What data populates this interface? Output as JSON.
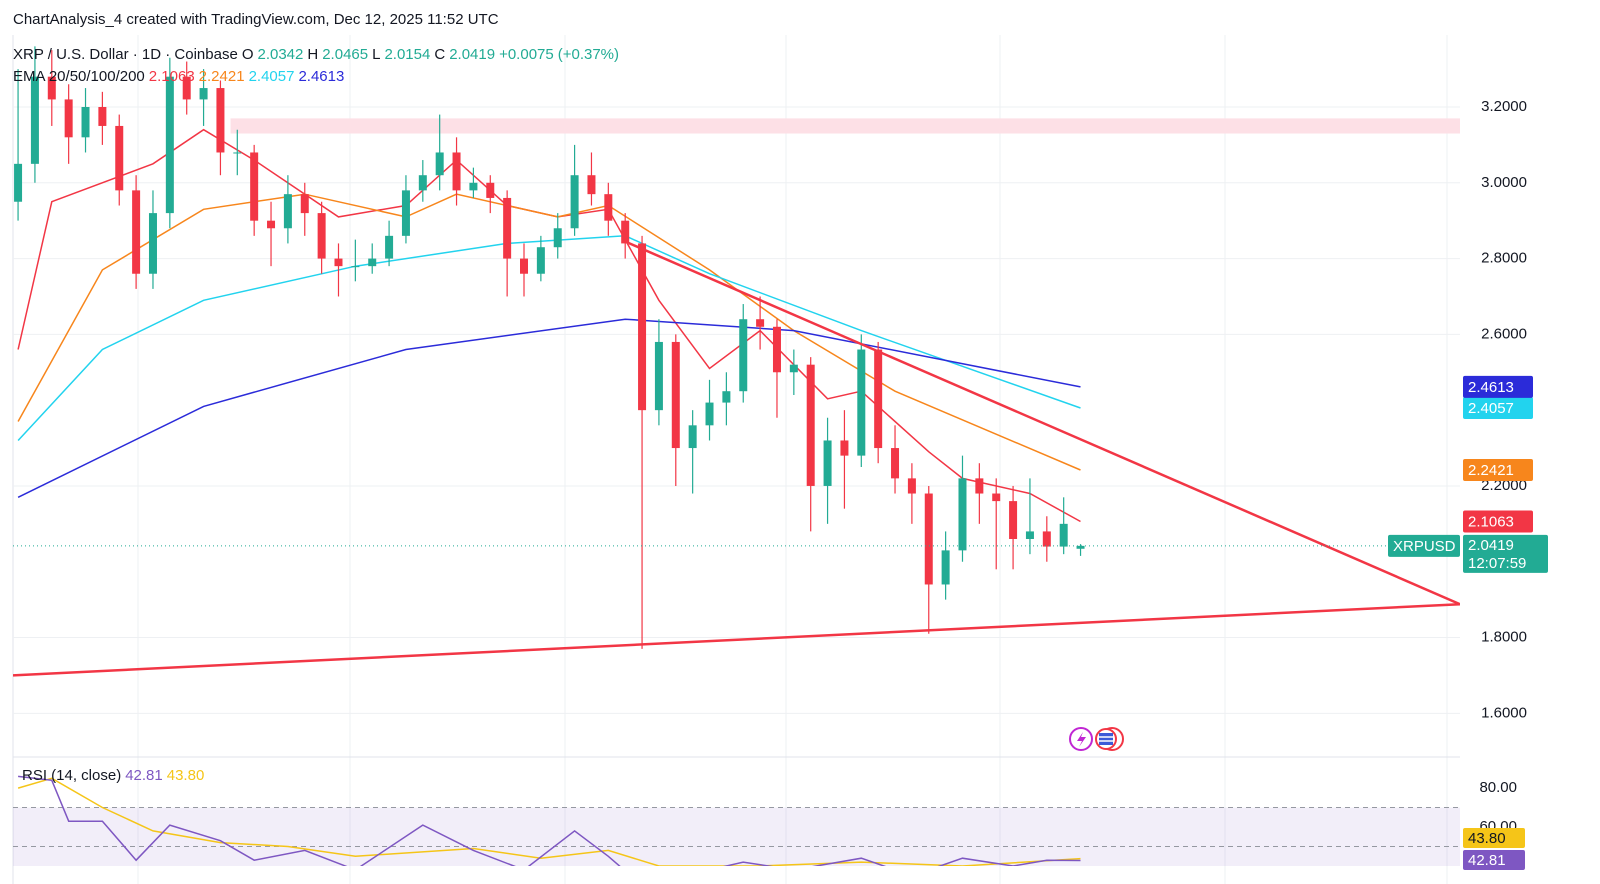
{
  "chart_data": {
    "type": "candlestick",
    "header": "ChartAnalysis_4 created with TradingView.com, Dec 12, 2025 11:52 UTC",
    "symbol_title": "XRP / U.S. Dollar · 1D · Coinbase",
    "ohlc_labels": [
      "O",
      "H",
      "L",
      "C"
    ],
    "change": {
      "value": 0.0075,
      "label": "+0.0075"
    },
    "change_pct": {
      "value": 0.37,
      "label": "(+0.37%)"
    },
    "ema_title": "EMA 20/50/100/200",
    "up_color": "#22ab94",
    "down_color": "#f23645",
    "ohlc": [
      [
        2.95,
        3.3,
        2.9,
        3.05
      ],
      [
        3.05,
        3.36,
        3.0,
        3.28
      ],
      [
        3.28,
        3.35,
        3.15,
        3.22
      ],
      [
        3.22,
        3.26,
        3.05,
        3.12
      ],
      [
        3.12,
        3.25,
        3.08,
        3.2
      ],
      [
        3.2,
        3.24,
        3.1,
        3.15
      ],
      [
        3.15,
        3.18,
        2.94,
        2.98
      ],
      [
        2.98,
        3.02,
        2.72,
        2.76
      ],
      [
        2.76,
        2.98,
        2.72,
        2.92
      ],
      [
        2.92,
        3.33,
        2.88,
        3.28
      ],
      [
        3.28,
        3.32,
        3.18,
        3.22
      ],
      [
        3.22,
        3.3,
        3.15,
        3.25
      ],
      [
        3.25,
        3.27,
        3.02,
        3.08
      ],
      [
        3.08,
        3.14,
        3.02,
        3.08
      ],
      [
        3.08,
        3.1,
        2.86,
        2.9
      ],
      [
        2.9,
        2.95,
        2.78,
        2.88
      ],
      [
        2.88,
        3.02,
        2.84,
        2.97
      ],
      [
        2.97,
        3.0,
        2.86,
        2.92
      ],
      [
        2.92,
        2.95,
        2.76,
        2.8
      ],
      [
        2.8,
        2.84,
        2.7,
        2.78
      ],
      [
        2.78,
        2.85,
        2.74,
        2.78
      ],
      [
        2.78,
        2.84,
        2.76,
        2.8
      ],
      [
        2.8,
        2.9,
        2.78,
        2.86
      ],
      [
        2.86,
        3.02,
        2.84,
        2.98
      ],
      [
        2.98,
        3.06,
        2.95,
        3.02
      ],
      [
        3.02,
        3.18,
        2.98,
        3.08
      ],
      [
        3.08,
        3.12,
        2.94,
        2.98
      ],
      [
        2.98,
        3.04,
        2.96,
        3.0
      ],
      [
        3.0,
        3.02,
        2.92,
        2.96
      ],
      [
        2.96,
        2.98,
        2.7,
        2.8
      ],
      [
        2.8,
        2.84,
        2.7,
        2.76
      ],
      [
        2.76,
        2.86,
        2.74,
        2.83
      ],
      [
        2.83,
        2.92,
        2.8,
        2.88
      ],
      [
        2.88,
        3.1,
        2.86,
        3.02
      ],
      [
        3.02,
        3.08,
        2.94,
        2.97
      ],
      [
        2.97,
        3.0,
        2.86,
        2.9
      ],
      [
        2.9,
        2.92,
        2.8,
        2.84
      ],
      [
        2.84,
        2.86,
        1.77,
        2.4
      ],
      [
        2.4,
        2.64,
        2.36,
        2.58
      ],
      [
        2.58,
        2.6,
        2.2,
        2.3
      ],
      [
        2.3,
        2.4,
        2.18,
        2.36
      ],
      [
        2.36,
        2.48,
        2.32,
        2.42
      ],
      [
        2.42,
        2.5,
        2.36,
        2.45
      ],
      [
        2.45,
        2.68,
        2.42,
        2.64
      ],
      [
        2.64,
        2.7,
        2.56,
        2.62
      ],
      [
        2.62,
        2.64,
        2.38,
        2.5
      ],
      [
        2.5,
        2.56,
        2.44,
        2.52
      ],
      [
        2.52,
        2.54,
        2.08,
        2.2
      ],
      [
        2.2,
        2.38,
        2.1,
        2.32
      ],
      [
        2.32,
        2.4,
        2.14,
        2.28
      ],
      [
        2.28,
        2.6,
        2.25,
        2.56
      ],
      [
        2.56,
        2.58,
        2.26,
        2.3
      ],
      [
        2.3,
        2.36,
        2.18,
        2.22
      ],
      [
        2.22,
        2.26,
        2.1,
        2.18
      ],
      [
        2.18,
        2.2,
        1.81,
        1.94
      ],
      [
        1.94,
        2.08,
        1.9,
        2.03
      ],
      [
        2.03,
        2.28,
        2.0,
        2.22
      ],
      [
        2.22,
        2.26,
        2.1,
        2.18
      ],
      [
        2.18,
        2.22,
        1.98,
        2.16
      ],
      [
        2.16,
        2.2,
        1.98,
        2.06
      ],
      [
        2.06,
        2.22,
        2.02,
        2.08
      ],
      [
        2.08,
        2.12,
        2.0,
        2.04
      ],
      [
        2.04,
        2.17,
        2.02,
        2.1
      ],
      [
        2.0342,
        2.0465,
        2.0154,
        2.0419
      ]
    ],
    "ema": [
      {
        "color": "#f23645",
        "x": [
          0,
          2,
          8,
          11,
          14,
          19,
          23,
          26,
          29,
          32,
          35,
          38,
          41,
          44,
          48,
          50,
          54,
          56,
          60,
          63
        ],
        "values": [
          2.56,
          2.95,
          3.05,
          3.14,
          3.06,
          2.91,
          2.94,
          3.06,
          2.94,
          2.91,
          2.93,
          2.69,
          2.51,
          2.61,
          2.43,
          2.45,
          2.29,
          2.22,
          2.18,
          2.1063
        ]
      },
      {
        "color": "#f7861c",
        "x": [
          0,
          5,
          11,
          17,
          23,
          26,
          32,
          35,
          41,
          46,
          52,
          63
        ],
        "values": [
          2.37,
          2.77,
          2.93,
          2.97,
          2.91,
          2.97,
          2.91,
          2.94,
          2.77,
          2.61,
          2.45,
          2.2421
        ]
      },
      {
        "color": "#22d3ee",
        "x": [
          0,
          5,
          11,
          20,
          29,
          36,
          41,
          50,
          63
        ],
        "values": [
          2.32,
          2.56,
          2.69,
          2.78,
          2.84,
          2.86,
          2.76,
          2.61,
          2.4057
        ]
      },
      {
        "color": "#2b2bd9",
        "x": [
          0,
          11,
          23,
          36,
          46,
          63
        ],
        "values": [
          2.17,
          2.41,
          2.56,
          2.64,
          2.61,
          2.4613
        ]
      }
    ],
    "xlim": [
      -0.3,
      85.5
    ],
    "ylim": [
      1.49,
      3.39
    ],
    "yticks": [
      {
        "value": 1.6,
        "label": "1.6000"
      },
      {
        "value": 1.8,
        "label": "1.8000"
      },
      {
        "value": 2.2,
        "label": "2.2000"
      },
      {
        "value": 2.6,
        "label": "2.6000"
      },
      {
        "value": 2.8,
        "label": "2.8000"
      },
      {
        "value": 3.0,
        "label": "3.0000"
      },
      {
        "value": 3.2,
        "label": "3.2000"
      }
    ],
    "grid": true,
    "trendlines": [
      {
        "color": "#f23645",
        "x": [
          36.2,
          85.5
        ],
        "values": [
          2.841,
          1.888
        ]
      },
      {
        "color": "#f23645",
        "x": [
          -0.3,
          85.5
        ],
        "values": [
          1.7,
          1.888
        ]
      }
    ],
    "zone": {
      "color": "#fde0e6",
      "x": [
        12.6,
        85.5
      ],
      "values": [
        3.13,
        3.17
      ]
    },
    "symbol": "XRPUSD",
    "countdown": "12:07:59",
    "last_color": "#22ab94",
    "rsi": {
      "title": "RSI (14, close)",
      "ylim": [
        40,
        94.4
      ],
      "yticks": [
        {
          "value": 80,
          "label": "80.00"
        },
        {
          "value": 60,
          "label": "60.00"
        }
      ],
      "levels": [
        70,
        50
      ],
      "series": [
        {
          "color": "#7e57c2",
          "x": [
            0,
            2,
            3,
            5,
            7,
            9,
            12,
            14,
            17,
            20,
            24,
            27,
            30,
            33,
            35,
            37,
            43,
            46,
            50,
            53,
            56,
            59,
            61,
            63
          ],
          "values": [
            86,
            84,
            63,
            63,
            43,
            61,
            53,
            43,
            48,
            38,
            61,
            48,
            38,
            58,
            45,
            30,
            42,
            38,
            44,
            35,
            44,
            40,
            43,
            42.81
          ]
        },
        {
          "color": "#f5c518",
          "x": [
            0,
            2,
            5,
            8,
            12,
            16,
            20,
            27,
            31,
            35,
            38,
            44,
            50,
            56,
            63
          ],
          "values": [
            80,
            85,
            70,
            58,
            52,
            50,
            45,
            49,
            44,
            48,
            40,
            40,
            42,
            40,
            43.8
          ],
          "value_labels": [
            null,
            null,
            null,
            null,
            null,
            null,
            null,
            null,
            null,
            null,
            null,
            null,
            null,
            null,
            "43.80"
          ]
        }
      ]
    }
  }
}
